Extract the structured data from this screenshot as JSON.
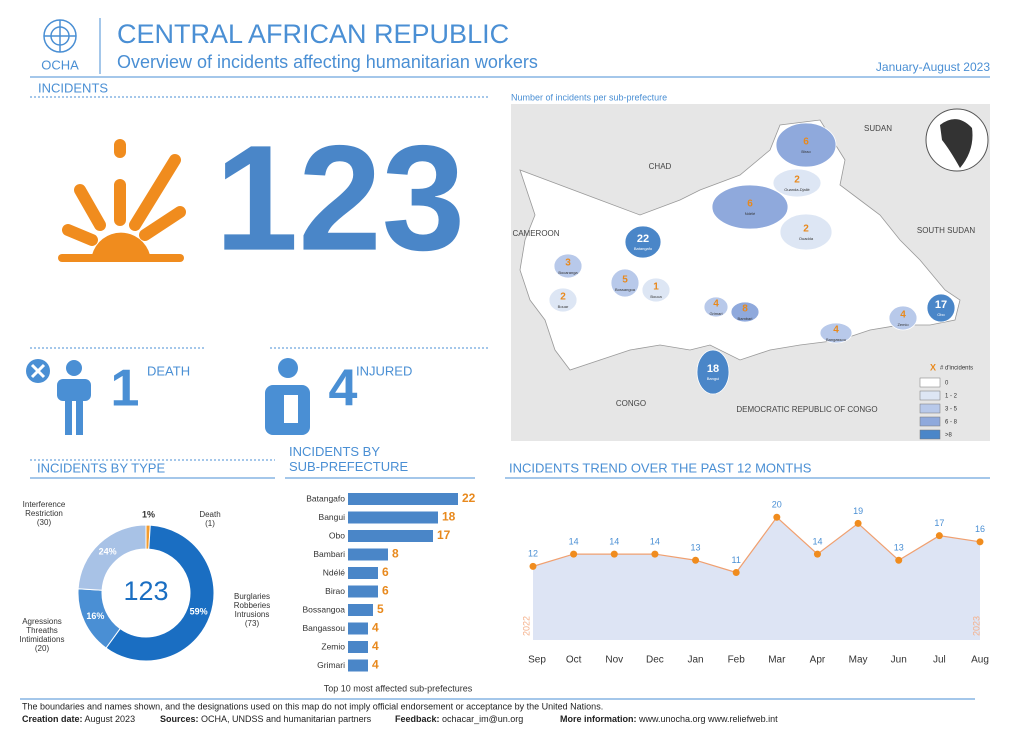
{
  "header": {
    "logo_text": "OCHA",
    "title": "CENTRAL AFRICAN REPUBLIC",
    "subtitle": "Overview of incidents affecting humanitarian workers",
    "period": "January-August 2023"
  },
  "incidents": {
    "heading": "INCIDENTS",
    "total": 123,
    "deaths": 1,
    "deaths_label": "DEATH",
    "injured": 4,
    "injured_label": "INJURED"
  },
  "map": {
    "title": "Number of incidents per sub-prefecture",
    "countries": [
      "CHAD",
      "SUDAN",
      "CAMEROON",
      "SOUTH SUDAN",
      "CONGO",
      "DEMOCRATIC REPUBLIC OF CONGO"
    ],
    "legend_marker": "X",
    "legend_title": "# d'incidents",
    "legend": [
      {
        "label": "0",
        "color": "#ffffff"
      },
      {
        "label": "1 - 2",
        "color": "#dde6f4"
      },
      {
        "label": "3 - 5",
        "color": "#b8c9ea"
      },
      {
        "label": "6 - 8",
        "color": "#8fa9dc"
      },
      {
        "label": ">8",
        "color": "#4a86c8"
      }
    ],
    "sub_prefectures": [
      {
        "name": "Birao",
        "value": 6,
        "color": "#8fa9dc"
      },
      {
        "name": "Ouanda-Djallé",
        "value": 2,
        "color": "#dde6f4"
      },
      {
        "name": "Ndélé",
        "value": 6,
        "color": "#8fa9dc"
      },
      {
        "name": "Ouadda",
        "value": 2,
        "color": "#dde6f4"
      },
      {
        "name": "Batangafo",
        "value": 22,
        "color": "#4a86c8"
      },
      {
        "name": "Bocaranga",
        "value": 3,
        "color": "#b8c9ea"
      },
      {
        "name": "Bossangoa",
        "value": 5,
        "color": "#b8c9ea"
      },
      {
        "name": "Bouar",
        "value": 2,
        "color": "#dde6f4"
      },
      {
        "name": "Bouca",
        "value": 1,
        "color": "#dde6f4"
      },
      {
        "name": "Grimari",
        "value": 4,
        "color": "#b8c9ea"
      },
      {
        "name": "Bambari",
        "value": 8,
        "color": "#8fa9dc"
      },
      {
        "name": "Bangassou",
        "value": 4,
        "color": "#b8c9ea"
      },
      {
        "name": "Zemio",
        "value": 4,
        "color": "#b8c9ea"
      },
      {
        "name": "Obo",
        "value": 17,
        "color": "#4a86c8"
      },
      {
        "name": "Bangui",
        "value": 18,
        "color": "#4a86c8"
      }
    ]
  },
  "chart_data": [
    {
      "type": "pie",
      "title": "INCIDENTS BY TYPE",
      "categories": [
        "Death",
        "Burglaries Robberies Intrusions",
        "Agressions Threaths Intimidations",
        "Interference Restriction"
      ],
      "values": [
        1,
        59,
        16,
        24
      ],
      "value_labels": [
        "1%",
        "59%",
        "16%",
        "24%"
      ],
      "counts": [
        1,
        73,
        20,
        30
      ],
      "count_labels": [
        "(1)",
        "(73)",
        "(20)",
        "(30)"
      ],
      "colors": [
        "#f39c2f",
        "#1a6ec2",
        "#4a8fd4",
        "#a8c2e6"
      ]
    },
    {
      "type": "bar",
      "title": "INCIDENTS BY SUB-PREFECTURE",
      "caption": "Top 10 most affected sub-prefectures",
      "categories": [
        "Batangafo",
        "Bangui",
        "Obo",
        "Bambari",
        "Ndélé",
        "Birao",
        "Bossangoa",
        "Bangassou",
        "Zemio",
        "Grimari"
      ],
      "values": [
        22,
        18,
        17,
        8,
        6,
        6,
        5,
        4,
        4,
        4
      ],
      "xlim": [
        0,
        22
      ],
      "color": "#4a86c8",
      "label_color": "#e8891d"
    },
    {
      "type": "line",
      "title": "INCIDENTS TREND OVER THE PAST 12 MONTHS",
      "categories": [
        "Sep",
        "Oct",
        "Nov",
        "Dec",
        "Jan",
        "Feb",
        "Mar",
        "Apr",
        "May",
        "Jun",
        "Jul",
        "Aug"
      ],
      "values": [
        12,
        14,
        14,
        14,
        13,
        11,
        20,
        14,
        19,
        13,
        17,
        16
      ],
      "ylim": [
        0,
        22
      ],
      "year_labels": [
        "2022",
        "2023"
      ],
      "color": "#f0a070",
      "fill": "#dde4f4"
    }
  ],
  "footer": {
    "disclaimer": "The boundaries and names shown, and the designations used on this map do not imply official endorsement or acceptance by the United Nations.",
    "creation_label": "Creation date:",
    "creation": "August 2023",
    "sources_label": "Sources:",
    "sources": "OCHA, UNDSS and humanitarian partners",
    "feedback_label": "Feedback:",
    "feedback": "ochacar_im@un.org",
    "more_label": "More information:",
    "more": "www.unocha.org   www.reliefweb.int"
  }
}
